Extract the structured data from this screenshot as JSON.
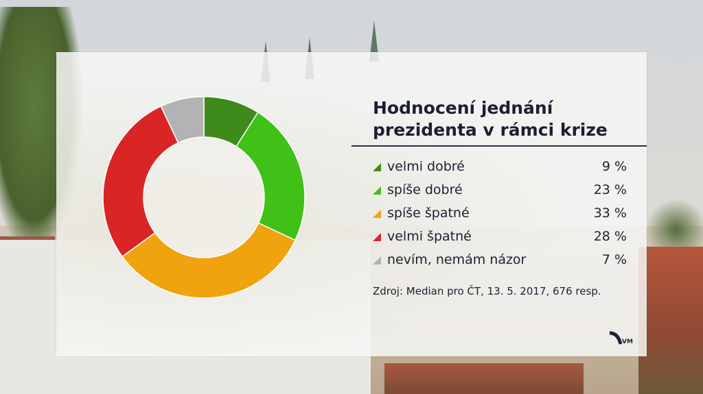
{
  "chart_data": {
    "type": "pie",
    "variant": "donut",
    "title": "Hodnocení jednání prezidenta v rámci krize",
    "slices": [
      {
        "label": "velmi dobré",
        "value": 9,
        "display": "9 %",
        "color": "#3e8a1b"
      },
      {
        "label": "spíše dobré",
        "value": 23,
        "display": "23 %",
        "color": "#3fc118"
      },
      {
        "label": "spíše špatné",
        "value": 33,
        "display": "33 %",
        "color": "#f0a30f"
      },
      {
        "label": "velmi špatné",
        "value": 28,
        "display": "28 %",
        "color": "#d92525"
      },
      {
        "label": "nevím, nemám názor",
        "value": 7,
        "display": "7 %",
        "color": "#b3b3b3"
      }
    ],
    "legend_position": "right",
    "source": "Zdroj: Median pro ČT, 13. 5. 2017, 676 resp."
  },
  "logo": {
    "text": "VM"
  }
}
